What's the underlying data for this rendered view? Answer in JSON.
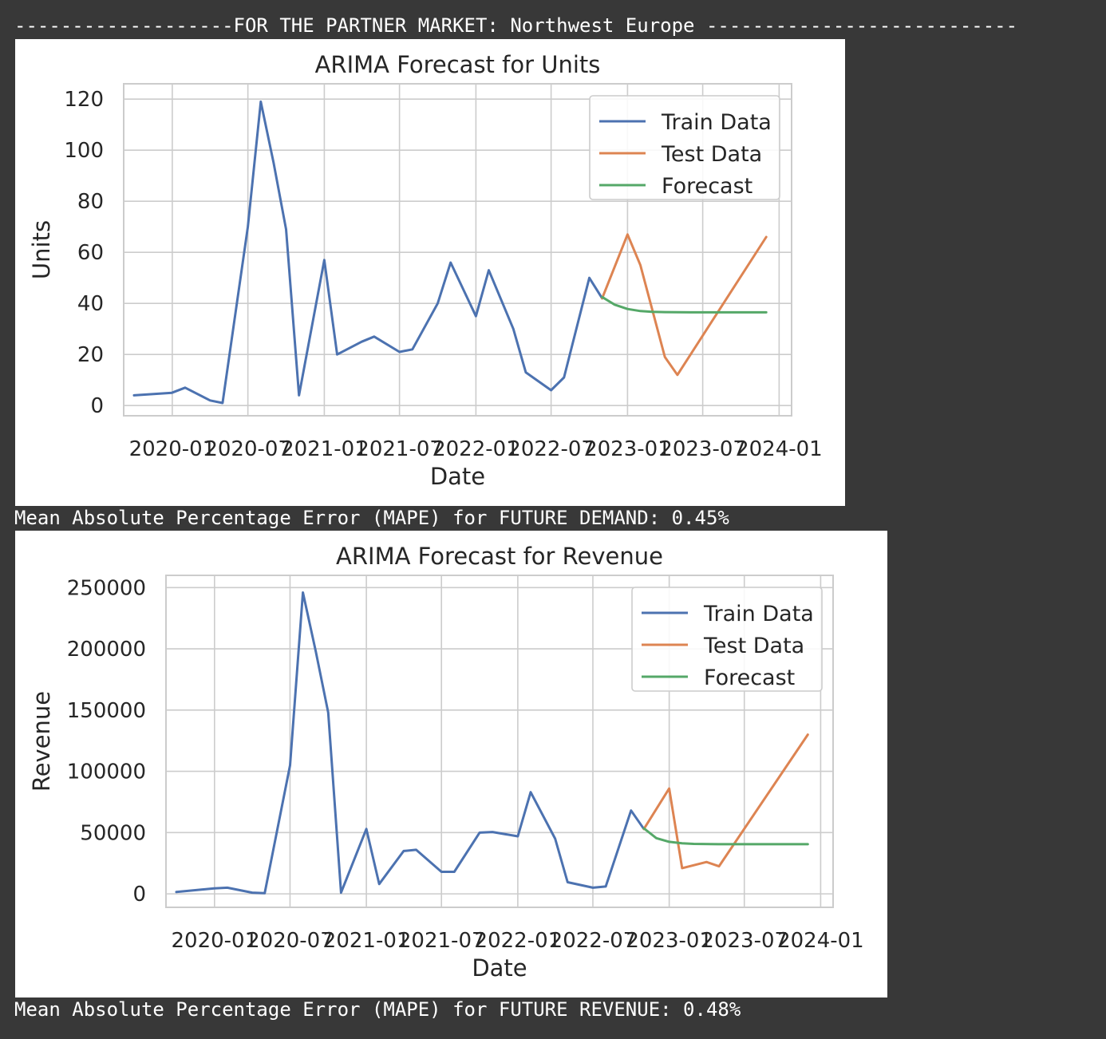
{
  "header": {
    "text": "-------------------FOR THE PARTNER MARKET: Northwest Europe ---------------------------"
  },
  "outputs": {
    "mape_units": "Mean Absolute Percentage Error (MAPE) for FUTURE DEMAND: 0.45%",
    "mape_revenue": "Mean Absolute Percentage Error (MAPE) for FUTURE REVENUE: 0.48%"
  },
  "colors": {
    "train": "#4c72b0",
    "test": "#dd8452",
    "forecast": "#55a868",
    "grid": "#cccccc",
    "background": "#383838"
  },
  "chart_data": [
    {
      "type": "line",
      "title": "ARIMA Forecast for Units",
      "xlabel": "Date",
      "ylabel": "Units",
      "x_tick_labels": [
        "2020-01",
        "2020-07",
        "2021-01",
        "2021-07",
        "2022-01",
        "2022-07",
        "2023-01",
        "2023-07",
        "2024-01"
      ],
      "y_ticks": [
        0,
        20,
        40,
        60,
        80,
        100,
        120
      ],
      "y_tick_labels": [
        "0",
        "20",
        "40",
        "60",
        "80",
        "100",
        "120"
      ],
      "xlim": [
        "2019-09-06",
        "2024-01-31"
      ],
      "ylim": [
        -4,
        126
      ],
      "grid": true,
      "legend_position": "upper right",
      "series": [
        {
          "name": "Train Data",
          "color": "#4c72b0",
          "points": [
            {
              "x": "2019-10-01",
              "y": 4
            },
            {
              "x": "2019-12-31",
              "y": 5
            },
            {
              "x": "2020-02-01",
              "y": 7
            },
            {
              "x": "2020-04-01",
              "y": 2
            },
            {
              "x": "2020-05-01",
              "y": 1
            },
            {
              "x": "2020-07-01",
              "y": 70
            },
            {
              "x": "2020-08-01",
              "y": 119
            },
            {
              "x": "2020-09-01",
              "y": 95
            },
            {
              "x": "2020-10-01",
              "y": 69
            },
            {
              "x": "2020-11-01",
              "y": 4
            },
            {
              "x": "2021-01-01",
              "y": 57
            },
            {
              "x": "2021-02-01",
              "y": 20
            },
            {
              "x": "2021-04-01",
              "y": 25
            },
            {
              "x": "2021-05-01",
              "y": 27
            },
            {
              "x": "2021-07-01",
              "y": 21
            },
            {
              "x": "2021-08-01",
              "y": 22
            },
            {
              "x": "2021-10-01",
              "y": 40
            },
            {
              "x": "2021-11-01",
              "y": 56
            },
            {
              "x": "2022-01-01",
              "y": 35
            },
            {
              "x": "2022-02-01",
              "y": 53
            },
            {
              "x": "2022-04-01",
              "y": 30
            },
            {
              "x": "2022-05-01",
              "y": 13
            },
            {
              "x": "2022-07-01",
              "y": 6
            },
            {
              "x": "2022-08-01",
              "y": 11
            },
            {
              "x": "2022-10-01",
              "y": 50
            },
            {
              "x": "2022-11-01",
              "y": 42
            }
          ]
        },
        {
          "name": "Test Data",
          "color": "#dd8452",
          "points": [
            {
              "x": "2022-11-01",
              "y": 42
            },
            {
              "x": "2023-01-01",
              "y": 67
            },
            {
              "x": "2023-02-01",
              "y": 55
            },
            {
              "x": "2023-04-01",
              "y": 19
            },
            {
              "x": "2023-05-01",
              "y": 12
            },
            {
              "x": "2023-12-01",
              "y": 66
            }
          ]
        },
        {
          "name": "Forecast",
          "color": "#55a868",
          "points": [
            {
              "x": "2022-11-01",
              "y": 42.5
            },
            {
              "x": "2022-12-01",
              "y": 39.5
            },
            {
              "x": "2023-01-01",
              "y": 37.8
            },
            {
              "x": "2023-02-01",
              "y": 37
            },
            {
              "x": "2023-03-01",
              "y": 36.7
            },
            {
              "x": "2023-04-01",
              "y": 36.6
            },
            {
              "x": "2023-06-01",
              "y": 36.5
            },
            {
              "x": "2023-12-01",
              "y": 36.5
            }
          ]
        }
      ]
    },
    {
      "type": "line",
      "title": "ARIMA Forecast for Revenue",
      "xlabel": "Date",
      "ylabel": "Revenue",
      "x_tick_labels": [
        "2020-01",
        "2020-07",
        "2021-01",
        "2021-07",
        "2022-01",
        "2022-07",
        "2023-01",
        "2023-07",
        "2024-01"
      ],
      "y_ticks": [
        0,
        50000,
        100000,
        150000,
        200000,
        250000
      ],
      "y_tick_labels": [
        "0",
        "50000",
        "100000",
        "150000",
        "200000",
        "250000"
      ],
      "xlim": [
        "2019-09-06",
        "2024-01-31"
      ],
      "ylim": [
        -11000,
        260000
      ],
      "grid": true,
      "legend_position": "upper right",
      "series": [
        {
          "name": "Train Data",
          "color": "#4c72b0",
          "points": [
            {
              "x": "2019-10-01",
              "y": 1500
            },
            {
              "x": "2019-12-31",
              "y": 4500
            },
            {
              "x": "2020-02-01",
              "y": 5000
            },
            {
              "x": "2020-04-01",
              "y": 1000
            },
            {
              "x": "2020-05-01",
              "y": 500
            },
            {
              "x": "2020-07-01",
              "y": 105000
            },
            {
              "x": "2020-08-01",
              "y": 246000
            },
            {
              "x": "2020-09-01",
              "y": 198000
            },
            {
              "x": "2020-10-01",
              "y": 148000
            },
            {
              "x": "2020-11-01",
              "y": 1000
            },
            {
              "x": "2021-01-01",
              "y": 53000
            },
            {
              "x": "2021-02-01",
              "y": 8000
            },
            {
              "x": "2021-04-01",
              "y": 35000
            },
            {
              "x": "2021-05-01",
              "y": 36000
            },
            {
              "x": "2021-07-01",
              "y": 18000
            },
            {
              "x": "2021-08-01",
              "y": 18000
            },
            {
              "x": "2021-10-01",
              "y": 50000
            },
            {
              "x": "2021-11-01",
              "y": 50500
            },
            {
              "x": "2022-01-01",
              "y": 47000
            },
            {
              "x": "2022-02-01",
              "y": 83000
            },
            {
              "x": "2022-04-01",
              "y": 45000
            },
            {
              "x": "2022-05-01",
              "y": 9500
            },
            {
              "x": "2022-07-01",
              "y": 5000
            },
            {
              "x": "2022-08-01",
              "y": 6000
            },
            {
              "x": "2022-10-01",
              "y": 68000
            },
            {
              "x": "2022-11-01",
              "y": 53000
            }
          ]
        },
        {
          "name": "Test Data",
          "color": "#dd8452",
          "points": [
            {
              "x": "2022-11-01",
              "y": 53000
            },
            {
              "x": "2023-01-01",
              "y": 86000
            },
            {
              "x": "2023-02-01",
              "y": 21000
            },
            {
              "x": "2023-04-01",
              "y": 26000
            },
            {
              "x": "2023-05-01",
              "y": 22500
            },
            {
              "x": "2023-12-01",
              "y": 130000
            }
          ]
        },
        {
          "name": "Forecast",
          "color": "#55a868",
          "points": [
            {
              "x": "2022-11-01",
              "y": 53500
            },
            {
              "x": "2022-12-01",
              "y": 45500
            },
            {
              "x": "2023-01-01",
              "y": 42500
            },
            {
              "x": "2023-02-01",
              "y": 41300
            },
            {
              "x": "2023-03-01",
              "y": 40800
            },
            {
              "x": "2023-05-01",
              "y": 40500
            },
            {
              "x": "2023-12-01",
              "y": 40500
            }
          ]
        }
      ]
    }
  ]
}
